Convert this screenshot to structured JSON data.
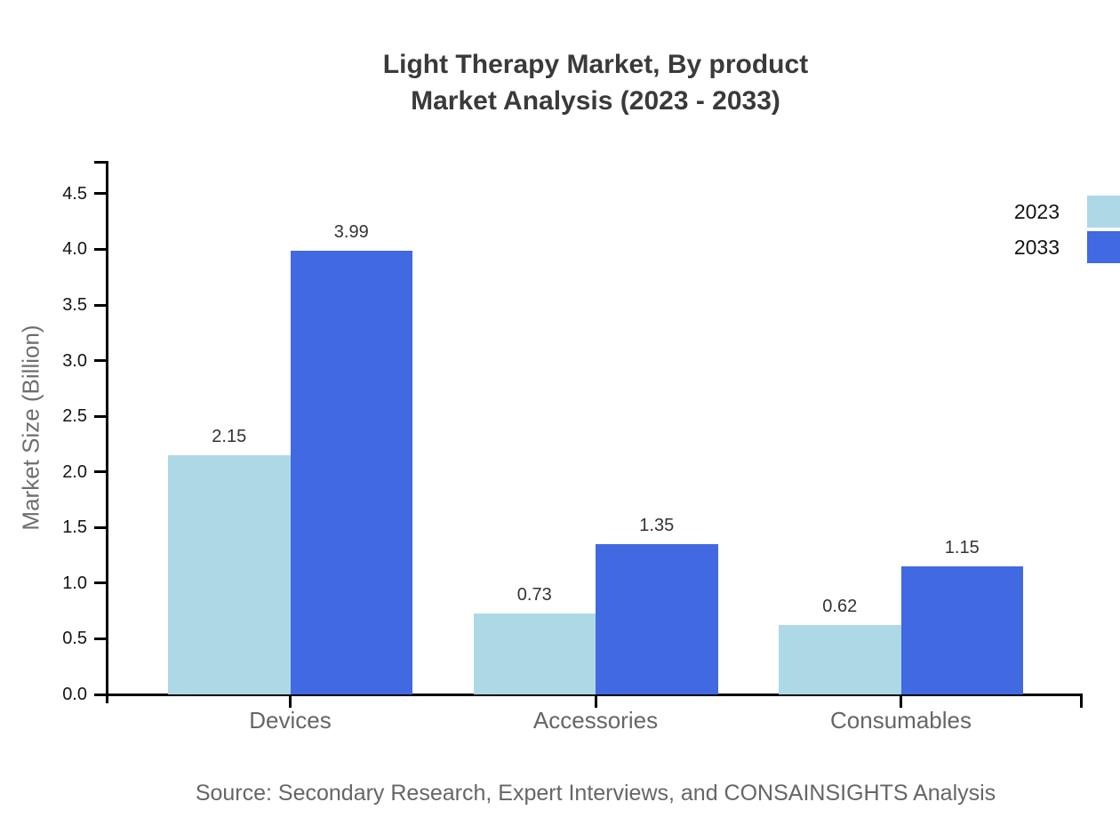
{
  "title": {
    "line1": "Light Therapy Market, By product",
    "line2": "Market Analysis (2023 - 2033)"
  },
  "source_note": "Source: Secondary Research, Expert Interviews, and CONSAINSIGHTS Analysis",
  "chart_data": {
    "type": "bar",
    "title": "Light Therapy Market, By product Market Analysis (2023 - 2033)",
    "categories": [
      "Devices",
      "Accessories",
      "Consumables"
    ],
    "series": [
      {
        "name": "2023",
        "color": "#ADD8E6",
        "values": [
          2.15,
          0.73,
          0.62
        ]
      },
      {
        "name": "2033",
        "color": "#4169E1",
        "values": [
          3.99,
          1.35,
          1.15
        ]
      }
    ],
    "xlabel": "",
    "ylabel": "Market Size (Billion)",
    "ylim": [
      0,
      4.787
    ],
    "yticks": [
      0.0,
      0.5,
      1.0,
      1.5,
      2.0,
      2.5,
      3.0,
      3.5,
      4.0,
      4.5
    ],
    "ytick_format_decimals": 1,
    "grid": false,
    "value_labels": true,
    "legend_position": "top-right"
  },
  "colors": {
    "axis": "#000000",
    "title_text": "#3a3a3a",
    "ytick_label": "#141414",
    "category_label": "#666666",
    "value_label": "#333333",
    "axis_title": "#6e6e6e",
    "source_text": "#666666",
    "background": "#ffffff"
  }
}
